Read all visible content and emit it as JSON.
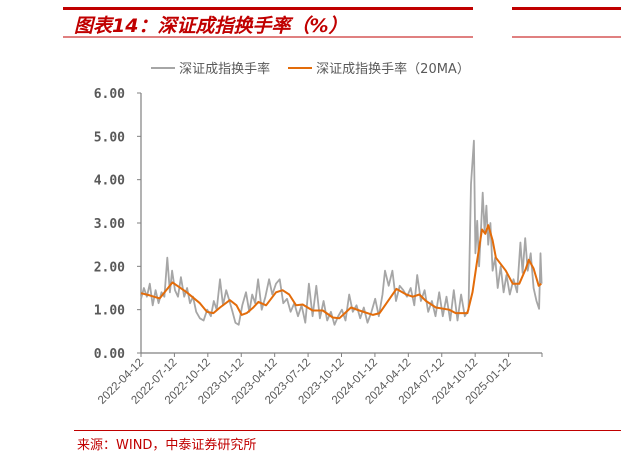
{
  "title": "图表14：深证成指换手率（%）",
  "source": "来源：WIND，中泰证券研究所",
  "colors": {
    "accent": "#c00000",
    "raw": "#a6a6a6",
    "ma": "#e36c0a",
    "axis": "#808080"
  },
  "chart_data": {
    "type": "line",
    "title": "",
    "xlabel": "",
    "ylabel": "",
    "ylim": [
      0,
      6
    ],
    "xlim": [
      "2022-04-12",
      "2025-04-12"
    ],
    "grid": false,
    "legend": "top",
    "yticks": [
      "0.00",
      "1.00",
      "2.00",
      "3.00",
      "4.00",
      "5.00",
      "6.00"
    ],
    "xticks": [
      "2022-04-12",
      "2022-07-12",
      "2022-10-12",
      "2023-01-12",
      "2023-04-12",
      "2023-07-12",
      "2023-10-12",
      "2024-01-12",
      "2024-04-12",
      "2024-07-12",
      "2024-10-12",
      "2025-01-12"
    ],
    "series": [
      {
        "name": "深证成指换手率",
        "color": "#a6a6a6",
        "points": [
          [
            "2022-04-12",
            1.25
          ],
          [
            "2022-04-20",
            1.5
          ],
          [
            "2022-04-28",
            1.3
          ],
          [
            "2022-05-06",
            1.6
          ],
          [
            "2022-05-14",
            1.1
          ],
          [
            "2022-05-22",
            1.45
          ],
          [
            "2022-05-30",
            1.15
          ],
          [
            "2022-06-07",
            1.4
          ],
          [
            "2022-06-15",
            1.3
          ],
          [
            "2022-06-23",
            2.2
          ],
          [
            "2022-06-30",
            1.4
          ],
          [
            "2022-07-06",
            1.9
          ],
          [
            "2022-07-14",
            1.45
          ],
          [
            "2022-07-22",
            1.3
          ],
          [
            "2022-07-30",
            1.75
          ],
          [
            "2022-08-08",
            1.3
          ],
          [
            "2022-08-16",
            1.5
          ],
          [
            "2022-08-24",
            1.15
          ],
          [
            "2022-09-01",
            1.3
          ],
          [
            "2022-09-10",
            0.95
          ],
          [
            "2022-09-20",
            0.8
          ],
          [
            "2022-09-30",
            0.75
          ],
          [
            "2022-10-10",
            1.0
          ],
          [
            "2022-10-20",
            0.85
          ],
          [
            "2022-10-28",
            1.2
          ],
          [
            "2022-11-05",
            1.0
          ],
          [
            "2022-11-14",
            1.7
          ],
          [
            "2022-11-22",
            1.1
          ],
          [
            "2022-12-01",
            1.45
          ],
          [
            "2022-12-10",
            1.2
          ],
          [
            "2022-12-18",
            0.95
          ],
          [
            "2022-12-26",
            0.7
          ],
          [
            "2023-01-04",
            0.65
          ],
          [
            "2023-01-14",
            1.1
          ],
          [
            "2023-01-24",
            1.4
          ],
          [
            "2023-02-02",
            0.95
          ],
          [
            "2023-02-10",
            1.35
          ],
          [
            "2023-02-18",
            1.15
          ],
          [
            "2023-02-26",
            1.7
          ],
          [
            "2023-03-08",
            1.0
          ],
          [
            "2023-03-18",
            1.3
          ],
          [
            "2023-03-28",
            1.7
          ],
          [
            "2023-04-06",
            1.35
          ],
          [
            "2023-04-16",
            1.6
          ],
          [
            "2023-04-26",
            1.7
          ],
          [
            "2023-05-06",
            1.15
          ],
          [
            "2023-05-16",
            1.25
          ],
          [
            "2023-05-26",
            0.95
          ],
          [
            "2023-06-05",
            1.15
          ],
          [
            "2023-06-15",
            0.85
          ],
          [
            "2023-06-25",
            1.1
          ],
          [
            "2023-07-05",
            0.7
          ],
          [
            "2023-07-15",
            1.6
          ],
          [
            "2023-07-25",
            0.85
          ],
          [
            "2023-08-04",
            1.55
          ],
          [
            "2023-08-14",
            0.8
          ],
          [
            "2023-08-24",
            1.2
          ],
          [
            "2023-09-03",
            0.75
          ],
          [
            "2023-09-13",
            0.95
          ],
          [
            "2023-09-23",
            0.65
          ],
          [
            "2023-10-03",
            0.85
          ],
          [
            "2023-10-13",
            1.0
          ],
          [
            "2023-10-23",
            0.75
          ],
          [
            "2023-11-02",
            1.35
          ],
          [
            "2023-11-12",
            0.95
          ],
          [
            "2023-11-22",
            1.1
          ],
          [
            "2023-12-02",
            0.8
          ],
          [
            "2023-12-12",
            1.05
          ],
          [
            "2023-12-22",
            0.7
          ],
          [
            "2024-01-02",
            0.95
          ],
          [
            "2024-01-12",
            1.25
          ],
          [
            "2024-01-22",
            0.85
          ],
          [
            "2024-02-01",
            1.35
          ],
          [
            "2024-02-08",
            1.9
          ],
          [
            "2024-02-18",
            1.55
          ],
          [
            "2024-02-28",
            1.9
          ],
          [
            "2024-03-09",
            1.2
          ],
          [
            "2024-03-19",
            1.55
          ],
          [
            "2024-03-29",
            1.45
          ],
          [
            "2024-04-08",
            1.3
          ],
          [
            "2024-04-18",
            1.5
          ],
          [
            "2024-04-28",
            1.1
          ],
          [
            "2024-05-06",
            1.8
          ],
          [
            "2024-05-16",
            1.2
          ],
          [
            "2024-05-26",
            1.45
          ],
          [
            "2024-06-05",
            0.95
          ],
          [
            "2024-06-15",
            1.2
          ],
          [
            "2024-06-25",
            0.85
          ],
          [
            "2024-07-05",
            1.4
          ],
          [
            "2024-07-15",
            0.85
          ],
          [
            "2024-07-25",
            1.3
          ],
          [
            "2024-08-04",
            0.75
          ],
          [
            "2024-08-14",
            1.45
          ],
          [
            "2024-08-24",
            0.75
          ],
          [
            "2024-09-03",
            1.35
          ],
          [
            "2024-09-13",
            0.85
          ],
          [
            "2024-09-23",
            1.0
          ],
          [
            "2024-09-30",
            3.9
          ],
          [
            "2024-10-08",
            4.9
          ],
          [
            "2024-10-12",
            2.3
          ],
          [
            "2024-10-17",
            3.05
          ],
          [
            "2024-10-22",
            2.0
          ],
          [
            "2024-10-28",
            3.0
          ],
          [
            "2024-11-01",
            3.7
          ],
          [
            "2024-11-06",
            2.8
          ],
          [
            "2024-11-11",
            3.4
          ],
          [
            "2024-11-16",
            2.5
          ],
          [
            "2024-11-22",
            3.0
          ],
          [
            "2024-11-28",
            1.9
          ],
          [
            "2024-12-05",
            2.2
          ],
          [
            "2024-12-12",
            1.5
          ],
          [
            "2024-12-20",
            2.0
          ],
          [
            "2024-12-28",
            1.4
          ],
          [
            "2025-01-05",
            1.8
          ],
          [
            "2025-01-14",
            1.35
          ],
          [
            "2025-01-24",
            1.7
          ],
          [
            "2025-02-03",
            1.4
          ],
          [
            "2025-02-12",
            2.55
          ],
          [
            "2025-02-18",
            1.85
          ],
          [
            "2025-02-25",
            2.65
          ],
          [
            "2025-03-04",
            1.9
          ],
          [
            "2025-03-12",
            2.3
          ],
          [
            "2025-03-20",
            1.5
          ],
          [
            "2025-03-28",
            1.2
          ],
          [
            "2025-04-04",
            1.02
          ],
          [
            "2025-04-08",
            2.3
          ],
          [
            "2025-04-11",
            1.6
          ]
        ]
      },
      {
        "name": "深证成指换手率（20MA）",
        "color": "#e36c0a",
        "points": [
          [
            "2022-04-12",
            1.38
          ],
          [
            "2022-05-06",
            1.33
          ],
          [
            "2022-06-02",
            1.26
          ],
          [
            "2022-07-07",
            1.63
          ],
          [
            "2022-08-15",
            1.4
          ],
          [
            "2022-09-20",
            1.15
          ],
          [
            "2022-10-09",
            0.95
          ],
          [
            "2022-10-27",
            0.92
          ],
          [
            "2022-11-14",
            1.05
          ],
          [
            "2022-12-11",
            1.22
          ],
          [
            "2022-12-29",
            1.1
          ],
          [
            "2023-01-12",
            0.88
          ],
          [
            "2023-01-26",
            0.92
          ],
          [
            "2023-02-13",
            1.05
          ],
          [
            "2023-02-27",
            1.18
          ],
          [
            "2023-03-20",
            1.1
          ],
          [
            "2023-04-16",
            1.4
          ],
          [
            "2023-05-04",
            1.45
          ],
          [
            "2023-05-22",
            1.35
          ],
          [
            "2023-06-10",
            1.1
          ],
          [
            "2023-06-28",
            1.12
          ],
          [
            "2023-07-25",
            0.98
          ],
          [
            "2023-08-22",
            0.98
          ],
          [
            "2023-09-18",
            0.82
          ],
          [
            "2023-10-06",
            0.8
          ],
          [
            "2023-11-07",
            1.05
          ],
          [
            "2023-11-30",
            0.98
          ],
          [
            "2024-01-06",
            0.88
          ],
          [
            "2024-01-24",
            0.92
          ],
          [
            "2024-02-12",
            1.15
          ],
          [
            "2024-03-10",
            1.48
          ],
          [
            "2024-04-06",
            1.35
          ],
          [
            "2024-04-24",
            1.3
          ],
          [
            "2024-05-12",
            1.35
          ],
          [
            "2024-05-30",
            1.2
          ],
          [
            "2024-06-26",
            1.05
          ],
          [
            "2024-08-01",
            1.0
          ],
          [
            "2024-08-19",
            0.92
          ],
          [
            "2024-09-20",
            0.92
          ],
          [
            "2024-10-04",
            1.4
          ],
          [
            "2024-10-18",
            2.2
          ],
          [
            "2024-10-30",
            2.85
          ],
          [
            "2024-11-08",
            2.75
          ],
          [
            "2024-11-16",
            2.95
          ],
          [
            "2024-11-28",
            2.6
          ],
          [
            "2024-12-07",
            2.2
          ],
          [
            "2025-01-03",
            1.9
          ],
          [
            "2025-01-22",
            1.6
          ],
          [
            "2025-02-09",
            1.6
          ],
          [
            "2025-02-27",
            1.95
          ],
          [
            "2025-03-07",
            2.15
          ],
          [
            "2025-03-20",
            1.95
          ],
          [
            "2025-04-03",
            1.55
          ],
          [
            "2025-04-10",
            1.6
          ]
        ]
      }
    ]
  }
}
